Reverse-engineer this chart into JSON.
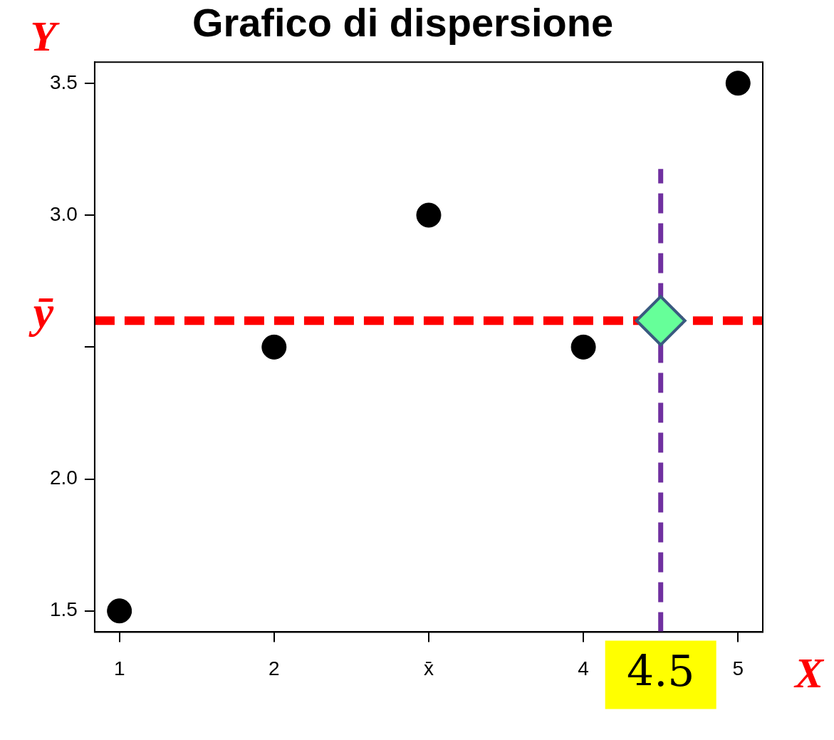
{
  "chart_data": {
    "type": "scatter",
    "title": "Grafico di dispersione",
    "xlabel": "X",
    "ylabel": "Y",
    "series": [
      {
        "color": "#000000",
        "marker": "circle",
        "x": [
          1,
          2,
          3,
          4,
          5
        ],
        "values": [
          1.5,
          2.5,
          3.0,
          2.5,
          3.5
        ]
      },
      {
        "color": "#66ff99",
        "marker": "diamond",
        "x": [
          4.5
        ],
        "values": [
          2.6
        ]
      }
    ],
    "xlim": [
      0.84,
      5.16
    ],
    "ylim": [
      1.42,
      3.58
    ],
    "xticks": [
      1,
      2,
      {
        "value": 3,
        "label": "x̄"
      },
      4,
      5
    ],
    "yticks": [
      1.5,
      {
        "value": 2,
        "label": "2.0"
      },
      {
        "value": 2.5,
        "label": null
      },
      {
        "value": 3,
        "label": "3.0"
      },
      3.5
    ],
    "ref_lines": [
      {
        "axis": "y",
        "value": 2.6,
        "label": "ȳ",
        "color": "#ff0000",
        "line_style": "dashed"
      },
      {
        "axis": "x",
        "value": 4.5,
        "label": "4.5",
        "color": "#7030a0",
        "line_style": "dashed"
      }
    ],
    "grid": false,
    "legend": false
  }
}
